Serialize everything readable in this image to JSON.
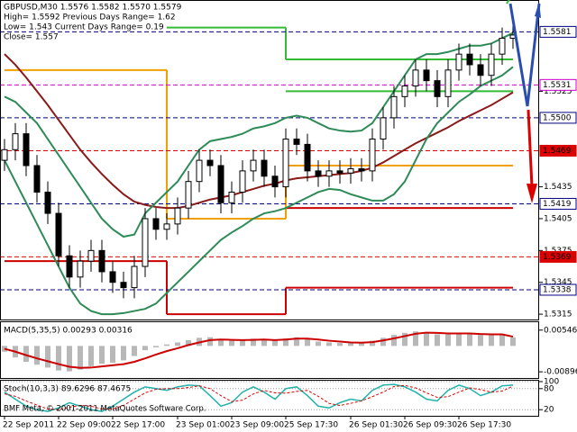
{
  "chart_data": {
    "type": "candlestick",
    "title": "GBPUSD,M30  1.5576 1.5582 1.5570 1.5579",
    "info": [
      "High= 1.5592    Previous Days Range= 1.62",
      "Low= 1.543    Current Days Range= 0.19",
      "Close= 1.557"
    ],
    "footer": "BMF Meta, © 2001-2011 MetaQuotes Software Corp.",
    "categories": [
      "22 Sep 2011",
      null,
      null,
      null,
      null,
      "22 Sep 09:00",
      null,
      null,
      null,
      null,
      "22 Sep 17:00",
      null,
      null,
      null,
      null,
      null,
      "23 Sep 01:00",
      null,
      null,
      null,
      null,
      "23 Sep 09:00",
      null,
      null,
      null,
      null,
      "25 Sep 17:30",
      null,
      null,
      null,
      null,
      null,
      "26 Sep 01:30",
      null,
      null,
      null,
      null,
      "26 Sep 09:30",
      null,
      null,
      null,
      null,
      "26 Sep 17:30",
      null,
      null,
      null,
      null,
      null
    ],
    "open": [
      1.546,
      1.547,
      1.5485,
      1.5455,
      1.543,
      1.541,
      1.537,
      1.535,
      1.5365,
      1.5375,
      1.5355,
      1.5345,
      1.534,
      1.536,
      1.5405,
      1.5395,
      1.54,
      1.5415,
      1.544,
      1.546,
      1.5455,
      1.542,
      1.543,
      1.545,
      1.546,
      1.5445,
      1.5435,
      1.548,
      1.5475,
      1.545,
      1.5445,
      1.545,
      1.5448,
      1.5452,
      1.545,
      1.548,
      1.55,
      1.552,
      1.553,
      1.5545,
      1.5535,
      1.552,
      1.5545,
      1.556,
      1.555,
      1.554,
      1.556,
      1.5575
    ],
    "high": [
      1.548,
      1.5495,
      1.5495,
      1.5465,
      1.544,
      1.542,
      1.538,
      1.5375,
      1.5385,
      1.5385,
      1.5365,
      1.5355,
      1.537,
      1.5415,
      1.5415,
      1.541,
      1.5425,
      1.545,
      1.547,
      1.547,
      1.5465,
      1.544,
      1.546,
      1.547,
      1.547,
      1.5455,
      1.549,
      1.549,
      1.5485,
      1.546,
      1.546,
      1.546,
      1.5462,
      1.5462,
      1.549,
      1.551,
      1.553,
      1.554,
      1.5555,
      1.5555,
      1.5545,
      1.5555,
      1.557,
      1.557,
      1.556,
      1.557,
      1.5585,
      1.559
    ],
    "low": [
      1.545,
      1.546,
      1.5445,
      1.542,
      1.54,
      1.536,
      1.534,
      1.534,
      1.5355,
      1.5345,
      1.5335,
      1.533,
      1.533,
      1.535,
      1.5385,
      1.5385,
      1.539,
      1.5405,
      1.543,
      1.5445,
      1.541,
      1.541,
      1.542,
      1.544,
      1.5435,
      1.5425,
      1.5425,
      1.5465,
      1.544,
      1.5435,
      1.5435,
      1.5438,
      1.5438,
      1.544,
      1.544,
      1.547,
      1.549,
      1.551,
      1.552,
      1.5525,
      1.551,
      1.551,
      1.5535,
      1.554,
      1.553,
      1.553,
      1.555,
      1.5565
    ],
    "close": [
      1.547,
      1.5485,
      1.5455,
      1.543,
      1.541,
      1.537,
      1.535,
      1.5365,
      1.5375,
      1.5355,
      1.5345,
      1.534,
      1.536,
      1.5405,
      1.5395,
      1.54,
      1.5415,
      1.544,
      1.546,
      1.5455,
      1.542,
      1.543,
      1.545,
      1.546,
      1.5445,
      1.5435,
      1.548,
      1.5475,
      1.545,
      1.5445,
      1.545,
      1.5448,
      1.5452,
      1.545,
      1.548,
      1.55,
      1.552,
      1.553,
      1.5545,
      1.5535,
      1.552,
      1.5545,
      1.556,
      1.555,
      1.554,
      1.556,
      1.5575,
      1.5578
    ],
    "ylim": [
      1.531,
      1.5611
    ],
    "yticks": [
      1.5525,
      1.5435,
      1.5405,
      1.5375,
      1.5345,
      1.5315
    ],
    "levels": [
      {
        "value": 1.5581,
        "label": "1.5581",
        "color": "#000080",
        "filled": false
      },
      {
        "value": 1.5531,
        "label": "1.5531",
        "color": "#cc00cc",
        "filled": false
      },
      {
        "value": 1.55,
        "label": "1.5500",
        "color": "#000080",
        "filled": false
      },
      {
        "value": 1.5469,
        "label": "1.5469",
        "color": "#dd0000",
        "filled": true
      },
      {
        "value": 1.5419,
        "label": "1.5419",
        "color": "#000080",
        "filled": false
      },
      {
        "value": 1.5369,
        "label": "1.5369",
        "color": "#dd0000",
        "filled": true
      },
      {
        "value": 1.5338,
        "label": "1.5338",
        "color": "#000080",
        "filled": false
      }
    ],
    "overlays": [
      {
        "color": "#8b1a1a",
        "values": [
          1.556,
          1.555,
          1.5538,
          1.5525,
          1.5512,
          1.5498,
          1.5484,
          1.547,
          1.5458,
          1.5447,
          1.5437,
          1.5428,
          1.5421,
          1.5418,
          1.5416,
          1.5415,
          1.5415,
          1.5417,
          1.542,
          1.5423,
          1.5425,
          1.5427,
          1.543,
          1.5433,
          1.5436,
          1.5438,
          1.5441,
          1.5443,
          1.5444,
          1.5445,
          1.5446,
          1.5447,
          1.5448,
          1.545,
          1.5453,
          1.5458,
          1.5464,
          1.547,
          1.5476,
          1.5481,
          1.5486,
          1.5491,
          1.5497,
          1.5502,
          1.5507,
          1.5512,
          1.5518,
          1.5524
        ]
      },
      {
        "color": "#2e8b57",
        "values": [
          1.552,
          1.5515,
          1.5505,
          1.5495,
          1.548,
          1.5465,
          1.545,
          1.5435,
          1.542,
          1.5405,
          1.5395,
          1.5388,
          1.539,
          1.541,
          1.542,
          1.543,
          1.544,
          1.5455,
          1.547,
          1.5478,
          1.548,
          1.5482,
          1.5485,
          1.549,
          1.5492,
          1.5495,
          1.55,
          1.5502,
          1.55,
          1.5495,
          1.549,
          1.5488,
          1.5487,
          1.5488,
          1.5495,
          1.551,
          1.5525,
          1.554,
          1.5555,
          1.556,
          1.556,
          1.5562,
          1.5565,
          1.5568,
          1.5568,
          1.557,
          1.5575,
          1.558
        ]
      },
      {
        "color": "#2e8b57",
        "values": [
          1.546,
          1.544,
          1.542,
          1.54,
          1.538,
          1.536,
          1.534,
          1.5325,
          1.5318,
          1.5315,
          1.5315,
          1.5316,
          1.5318,
          1.532,
          1.5325,
          1.5335,
          1.5345,
          1.5355,
          1.5365,
          1.5375,
          1.5385,
          1.5392,
          1.5398,
          1.5405,
          1.541,
          1.5412,
          1.5415,
          1.542,
          1.5425,
          1.543,
          1.5433,
          1.5432,
          1.5428,
          1.5425,
          1.5422,
          1.5422,
          1.5428,
          1.544,
          1.546,
          1.548,
          1.5495,
          1.5505,
          1.5515,
          1.5522,
          1.553,
          1.5535,
          1.554,
          1.5548
        ]
      }
    ],
    "steps": [
      {
        "color": "#33bb33",
        "segments": [
          {
            "from": 15,
            "to": 26,
            "value": 1.5585
          },
          {
            "from": 26,
            "to": 47,
            "value": 1.5555
          }
        ]
      },
      {
        "color": "#33bb33",
        "segments": [
          {
            "from": 26,
            "to": 47,
            "value": 1.5525
          }
        ]
      },
      {
        "color": "#f0a000",
        "segments": [
          {
            "from": 0,
            "to": 15,
            "value": 1.5545
          },
          {
            "from": 15,
            "to": 26,
            "value": 1.5405
          },
          {
            "from": 26,
            "to": 47,
            "value": 1.5455
          }
        ]
      },
      {
        "color": "#cc0000",
        "segments": [
          {
            "from": 0,
            "to": 15,
            "value": 1.5365
          },
          {
            "from": 15,
            "to": 26,
            "value": 1.5315
          },
          {
            "from": 26,
            "to": 47,
            "value": 1.534
          }
        ]
      },
      {
        "color": "#cc0000",
        "segments": [
          {
            "from": 26,
            "to": 47,
            "value": 1.5415
          }
        ]
      }
    ],
    "macd": {
      "title": "MACD(5,35,5) 0.00293 0.00316",
      "ylim": [
        -0.0111,
        0.0082
      ],
      "yticks": [
        0.00546,
        -0.00896
      ],
      "hist_color": "#b8b8b8",
      "signal_color": "#cc0000",
      "histogram": [
        -0.002,
        -0.004,
        -0.0055,
        -0.0065,
        -0.0075,
        -0.0085,
        -0.0088,
        -0.0082,
        -0.007,
        -0.0062,
        -0.0058,
        -0.005,
        -0.0035,
        -0.0015,
        -0.0005,
        0.0005,
        0.0012,
        0.002,
        0.0028,
        0.003,
        0.0022,
        0.0018,
        0.002,
        0.0025,
        0.0022,
        0.0018,
        0.0026,
        0.003,
        0.0024,
        0.0015,
        0.0012,
        0.001,
        0.001,
        0.001,
        0.0018,
        0.0028,
        0.0038,
        0.0045,
        0.005,
        0.0048,
        0.004,
        0.004,
        0.0043,
        0.0042,
        0.0038,
        0.0038,
        0.004,
        0.0029
      ],
      "signal": [
        -0.001,
        -0.002,
        -0.0032,
        -0.0043,
        -0.0053,
        -0.0063,
        -0.0072,
        -0.0076,
        -0.0075,
        -0.0071,
        -0.0067,
        -0.0063,
        -0.0055,
        -0.0043,
        -0.003,
        -0.0018,
        -0.0008,
        0.0003,
        0.0012,
        0.002,
        0.0022,
        0.0021,
        0.002,
        0.0021,
        0.0022,
        0.002,
        0.0022,
        0.0025,
        0.0025,
        0.0022,
        0.0018,
        0.0015,
        0.0012,
        0.0011,
        0.0013,
        0.0019,
        0.0026,
        0.0034,
        0.0042,
        0.0046,
        0.0045,
        0.0043,
        0.0043,
        0.0043,
        0.0041,
        0.004,
        0.004,
        0.0032
      ]
    },
    "stoch": {
      "title": "Stoch(10,3,3) 89.6296 87.4675",
      "ylim": [
        0,
        100
      ],
      "yticks": [
        100,
        80,
        20
      ],
      "main_color": "#20b2aa",
      "signal_color": "#dd0000",
      "main": [
        70,
        50,
        30,
        20,
        15,
        25,
        40,
        30,
        20,
        15,
        30,
        50,
        70,
        85,
        80,
        75,
        85,
        90,
        88,
        60,
        30,
        40,
        70,
        85,
        70,
        50,
        80,
        85,
        60,
        30,
        25,
        40,
        50,
        45,
        75,
        90,
        92,
        85,
        70,
        50,
        45,
        75,
        90,
        80,
        60,
        70,
        88,
        90
      ],
      "signal": [
        65,
        58,
        45,
        33,
        22,
        20,
        27,
        32,
        30,
        22,
        22,
        32,
        50,
        68,
        78,
        80,
        80,
        83,
        88,
        80,
        60,
        43,
        47,
        65,
        75,
        68,
        67,
        72,
        75,
        58,
        38,
        32,
        38,
        45,
        57,
        70,
        86,
        89,
        82,
        68,
        55,
        57,
        70,
        82,
        77,
        70,
        73,
        87
      ]
    }
  }
}
